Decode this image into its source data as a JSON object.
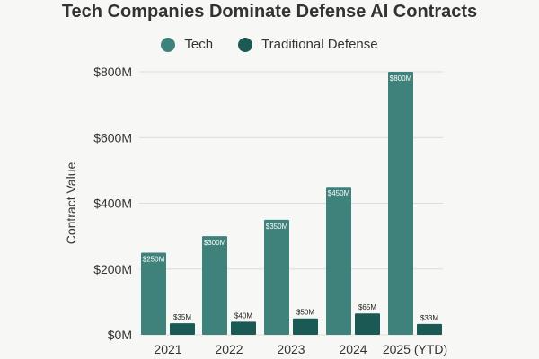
{
  "chart_data": {
    "type": "bar",
    "title": "Tech Companies Dominate Defense AI Contracts",
    "xlabel": "",
    "ylabel": "Contract Value",
    "categories": [
      "2021",
      "2022",
      "2023",
      "2024",
      "2025 (YTD)"
    ],
    "series": [
      {
        "name": "Tech",
        "values": [
          250,
          300,
          350,
          450,
          800
        ],
        "labels": [
          "$250M",
          "$300M",
          "$350M",
          "$450M",
          "$800M"
        ],
        "color": "#3f827b"
      },
      {
        "name": "Traditional Defense",
        "values": [
          35,
          40,
          50,
          65,
          33
        ],
        "labels": [
          "$35M",
          "$40M",
          "$50M",
          "$65M",
          "$33M"
        ],
        "color": "#1b5a54"
      }
    ],
    "ylim": [
      0,
      800
    ],
    "yticks": [
      0,
      200,
      400,
      600,
      800
    ],
    "ytick_labels": [
      "$0M",
      "$200M",
      "$400M",
      "$600M",
      "$800M"
    ],
    "grid": true,
    "legend_position": "top-center"
  }
}
